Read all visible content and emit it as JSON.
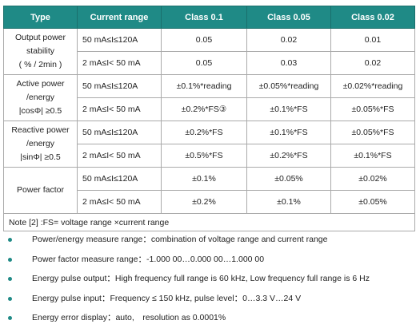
{
  "table": {
    "headers": [
      "Type",
      "Current range",
      "Class 0.1",
      "Class 0.05",
      "Class 0.02"
    ],
    "groups": [
      {
        "type_lines": [
          "Output power",
          "stability",
          "( % / 2min )"
        ],
        "rows": [
          {
            "range": "50 mA≤I≤120A",
            "c01": "0.05",
            "c005": "0.02",
            "c002": "0.01"
          },
          {
            "range": "2 mA≤I< 50 mA",
            "c01": "0.05",
            "c005": "0.03",
            "c002": "0.02"
          }
        ]
      },
      {
        "type_lines": [
          "Active power",
          "/energy",
          "|cosΦ| ≥0.5"
        ],
        "rows": [
          {
            "range": "50 mA≤I≤120A",
            "c01": "±0.1%*reading",
            "c005": "±0.05%*reading",
            "c002": "±0.02%*reading"
          },
          {
            "range": "2 mA≤I< 50 mA",
            "c01": "±0.2%*FS③",
            "c005": "±0.1%*FS",
            "c002": "±0.05%*FS"
          }
        ]
      },
      {
        "type_lines": [
          "Reactive power",
          "/energy",
          "|sinΦ| ≥0.5"
        ],
        "rows": [
          {
            "range": "50 mA≤I≤120A",
            "c01": "±0.2%*FS",
            "c005": "±0.1%*FS",
            "c002": "±0.05%*FS"
          },
          {
            "range": "2 mA≤I< 50 mA",
            "c01": "±0.5%*FS",
            "c005": "±0.2%*FS",
            "c002": "±0.1%*FS"
          }
        ]
      },
      {
        "type_lines": [
          "Power factor"
        ],
        "rows": [
          {
            "range": "50 mA≤I≤120A",
            "c01": "±0.1%",
            "c005": "±0.05%",
            "c002": "±0.02%"
          },
          {
            "range": "2 mA≤I< 50 mA",
            "c01": "±0.2%",
            "c005": "±0.1%",
            "c002": "±0.05%"
          }
        ]
      }
    ],
    "note": "Note [2] :FS= voltage range ×current range"
  },
  "bullets": [
    "Power/energy measure range：combination of voltage range and current range",
    "Power factor measure range：-1.000 00…0.000 00…1.000 00",
    "Energy pulse output：High frequency full range is 60 kHz, Low frequency full range is 6 Hz",
    "Energy pulse input：Frequency ≤ 150 kHz, pulse level：0…3.3 V…24 V",
    "Energy error display：auto,　resolution as 0.0001%"
  ],
  "colors": {
    "header_bg": "#1f8a86",
    "header_text": "#ffffff",
    "bullet": "#1f8a86",
    "border": "#aaaaaa"
  }
}
